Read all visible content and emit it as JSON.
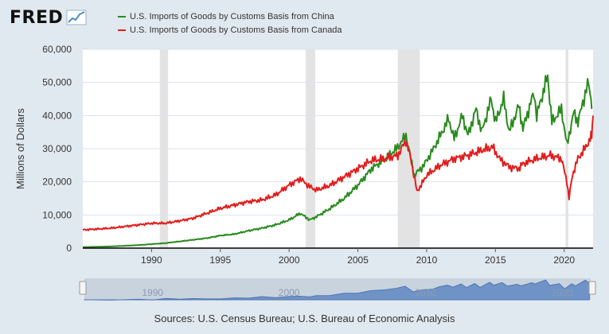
{
  "header": {
    "logo_text": "FRED"
  },
  "legend": [
    {
      "label": "U.S. Imports of Goods by Customs Basis from China",
      "color": "#2a8a1e"
    },
    {
      "label": "U.S. Imports of Goods by Customs Basis from Canada",
      "color": "#e11d1d"
    }
  ],
  "footer": {
    "source": "Sources: U.S. Census Bureau; U.S. Bureau of Economic Analysis"
  },
  "chart_data": {
    "type": "line",
    "ylabel": "Millions of Dollars",
    "ylim": [
      0,
      60000
    ],
    "xlim": [
      1985.0,
      2022.1
    ],
    "yticks": [
      "0",
      "10,000",
      "20,000",
      "30,000",
      "40,000",
      "50,000",
      "60,000"
    ],
    "xticks": [
      "1990",
      "1995",
      "2000",
      "2005",
      "2010",
      "2015",
      "2020"
    ],
    "recessions": [
      [
        1990.6,
        1991.2
      ],
      [
        2001.2,
        2001.9
      ],
      [
        2007.9,
        2009.5
      ],
      [
        2020.1,
        2020.3
      ]
    ],
    "series": [
      {
        "name": "U.S. Imports of Goods by Customs Basis from China",
        "color": "#2a8a1e",
        "points": [
          [
            1985.0,
            300
          ],
          [
            1987.0,
            500
          ],
          [
            1989.0,
            900
          ],
          [
            1990.0,
            1200
          ],
          [
            1991.0,
            1500
          ],
          [
            1992.0,
            2000
          ],
          [
            1993.0,
            2500
          ],
          [
            1994.0,
            3000
          ],
          [
            1995.0,
            3800
          ],
          [
            1996.0,
            4200
          ],
          [
            1997.0,
            5200
          ],
          [
            1998.0,
            6000
          ],
          [
            1999.0,
            7000
          ],
          [
            2000.0,
            8500
          ],
          [
            2000.8,
            10500
          ],
          [
            2001.5,
            8500
          ],
          [
            2002.0,
            9500
          ],
          [
            2003.0,
            12000
          ],
          [
            2004.0,
            15000
          ],
          [
            2005.0,
            19000
          ],
          [
            2006.0,
            24000
          ],
          [
            2007.0,
            27000
          ],
          [
            2007.8,
            30000
          ],
          [
            2008.5,
            34000
          ],
          [
            2009.1,
            22000
          ],
          [
            2009.8,
            25000
          ],
          [
            2010.5,
            30000
          ],
          [
            2011.0,
            34000
          ],
          [
            2011.6,
            39000
          ],
          [
            2012.0,
            33000
          ],
          [
            2012.6,
            40000
          ],
          [
            2013.0,
            34000
          ],
          [
            2013.6,
            42000
          ],
          [
            2014.0,
            35000
          ],
          [
            2014.7,
            45000
          ],
          [
            2015.0,
            38000
          ],
          [
            2015.6,
            45000
          ],
          [
            2016.0,
            35000
          ],
          [
            2016.7,
            43000
          ],
          [
            2017.0,
            36000
          ],
          [
            2017.8,
            47000
          ],
          [
            2018.0,
            40000
          ],
          [
            2018.8,
            52000
          ],
          [
            2019.1,
            38000
          ],
          [
            2019.8,
            42000
          ],
          [
            2020.2,
            31000
          ],
          [
            2020.7,
            41000
          ],
          [
            2021.0,
            38000
          ],
          [
            2021.7,
            49500
          ],
          [
            2021.9,
            47000
          ],
          [
            2022.0,
            42000
          ]
        ]
      },
      {
        "name": "U.S. Imports of Goods by Customs Basis from Canada",
        "color": "#e11d1d",
        "points": [
          [
            1985.0,
            5500
          ],
          [
            1987.0,
            6000
          ],
          [
            1989.0,
            7000
          ],
          [
            1990.0,
            7500
          ],
          [
            1991.0,
            7500
          ],
          [
            1992.0,
            8200
          ],
          [
            1993.0,
            9000
          ],
          [
            1994.0,
            10500
          ],
          [
            1995.0,
            12000
          ],
          [
            1996.0,
            13000
          ],
          [
            1997.0,
            14000
          ],
          [
            1998.0,
            14500
          ],
          [
            1999.0,
            16000
          ],
          [
            2000.0,
            19000
          ],
          [
            2000.8,
            21000
          ],
          [
            2001.5,
            18500
          ],
          [
            2002.0,
            17500
          ],
          [
            2003.0,
            19000
          ],
          [
            2004.0,
            21500
          ],
          [
            2005.0,
            24000
          ],
          [
            2006.0,
            26500
          ],
          [
            2007.0,
            27000
          ],
          [
            2007.9,
            28000
          ],
          [
            2008.5,
            32500
          ],
          [
            2008.9,
            26000
          ],
          [
            2009.3,
            17000
          ],
          [
            2009.6,
            19000
          ],
          [
            2010.0,
            22000
          ],
          [
            2011.0,
            25000
          ],
          [
            2012.0,
            27000
          ],
          [
            2013.0,
            28000
          ],
          [
            2014.0,
            29500
          ],
          [
            2014.8,
            30500
          ],
          [
            2015.3,
            27000
          ],
          [
            2016.0,
            24500
          ],
          [
            2016.7,
            24000
          ],
          [
            2017.0,
            25500
          ],
          [
            2018.0,
            27000
          ],
          [
            2019.0,
            28000
          ],
          [
            2019.8,
            27000
          ],
          [
            2020.2,
            20000
          ],
          [
            2020.35,
            15000
          ],
          [
            2020.6,
            22000
          ],
          [
            2021.0,
            27000
          ],
          [
            2021.5,
            30000
          ],
          [
            2021.9,
            33000
          ],
          [
            2022.0,
            34000
          ],
          [
            2022.1,
            40000
          ]
        ]
      }
    ]
  }
}
